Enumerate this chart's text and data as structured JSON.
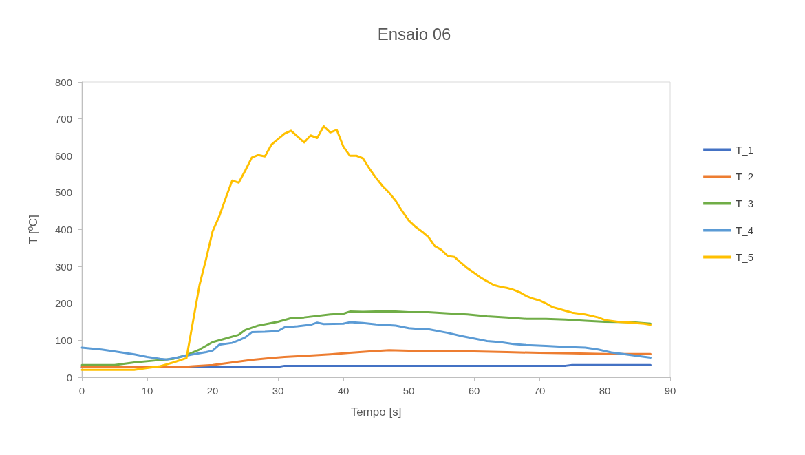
{
  "chart_data": {
    "type": "line",
    "title": "Ensaio 06",
    "xlabel": "Tempo [s]",
    "ylabel": "T [ºC]",
    "xlim": [
      0,
      90
    ],
    "xticks": [
      0,
      10,
      20,
      30,
      40,
      50,
      60,
      70,
      80,
      90
    ],
    "ylim": [
      0,
      800
    ],
    "yticks": [
      0,
      100,
      200,
      300,
      400,
      500,
      600,
      700,
      800
    ],
    "grid": false,
    "legend": "right",
    "marker": "none",
    "line_style": "solid",
    "series": [
      {
        "name": "T_1",
        "color": "#4472c4",
        "x": [
          0,
          10,
          20,
          30,
          31,
          40,
          50,
          60,
          70,
          74,
          75,
          80,
          87
        ],
        "values": [
          28,
          28,
          28,
          28,
          31,
          31,
          31,
          31,
          31,
          31,
          33,
          33,
          33
        ]
      },
      {
        "name": "T_2",
        "color": "#ed7d31",
        "x": [
          0,
          15,
          17,
          20,
          23,
          26,
          29,
          31,
          34,
          38,
          41,
          44,
          47,
          50,
          55,
          60,
          65,
          70,
          75,
          80,
          87
        ],
        "values": [
          27,
          27,
          30,
          33,
          40,
          47,
          52,
          55,
          58,
          62,
          66,
          70,
          73,
          72,
          72,
          70,
          68,
          66,
          65,
          63,
          63
        ]
      },
      {
        "name": "T_3",
        "color": "#70ad47",
        "x": [
          0,
          5,
          8,
          11,
          14,
          16,
          18,
          20,
          22,
          24,
          25,
          27,
          30,
          32,
          34,
          38,
          40,
          41,
          43,
          45,
          48,
          50,
          53,
          56,
          59,
          62,
          65,
          68,
          71,
          74,
          77,
          80,
          84,
          87
        ],
        "values": [
          33,
          33,
          40,
          45,
          50,
          60,
          75,
          95,
          105,
          115,
          128,
          140,
          150,
          160,
          162,
          170,
          172,
          178,
          177,
          178,
          178,
          176,
          176,
          173,
          170,
          165,
          162,
          158,
          158,
          156,
          153,
          150,
          149,
          145
        ]
      },
      {
        "name": "T_4",
        "color": "#5b9bd5",
        "x": [
          0,
          3,
          5,
          8,
          10,
          12,
          13,
          15,
          17,
          19,
          20,
          21,
          23,
          24,
          25,
          26,
          28,
          30,
          31,
          33,
          35,
          36,
          37,
          40,
          41,
          43,
          45,
          48,
          50,
          52,
          53,
          56,
          58,
          60,
          62,
          64,
          66,
          68,
          71,
          74,
          77,
          79,
          81,
          84,
          87
        ],
        "values": [
          80,
          75,
          70,
          62,
          55,
          50,
          48,
          55,
          62,
          68,
          72,
          88,
          93,
          100,
          108,
          122,
          123,
          125,
          135,
          138,
          142,
          148,
          144,
          145,
          149,
          147,
          143,
          140,
          133,
          130,
          130,
          120,
          112,
          105,
          98,
          95,
          90,
          87,
          85,
          82,
          80,
          75,
          67,
          60,
          53
        ]
      },
      {
        "name": "T_5",
        "color": "#ffc000",
        "x": [
          0,
          8,
          10,
          12,
          14,
          16,
          18,
          19,
          20,
          21,
          22,
          23,
          24,
          25,
          26,
          27,
          28,
          29,
          30,
          31,
          32,
          33,
          34,
          35,
          36,
          37,
          38,
          39,
          40,
          41,
          42,
          43,
          44,
          45,
          46,
          47,
          48,
          49,
          50,
          51,
          52,
          53,
          54,
          55,
          56,
          57,
          58,
          59,
          60,
          61,
          62,
          63,
          64,
          65,
          66,
          67,
          68,
          69,
          70,
          71,
          72,
          73,
          74,
          75,
          77,
          79,
          80,
          82,
          84,
          86,
          87
        ],
        "values": [
          20,
          20,
          25,
          30,
          40,
          52,
          250,
          320,
          395,
          435,
          485,
          533,
          527,
          560,
          595,
          602,
          598,
          630,
          645,
          660,
          668,
          652,
          636,
          655,
          648,
          680,
          663,
          670,
          625,
          600,
          600,
          593,
          565,
          540,
          518,
          500,
          478,
          450,
          425,
          408,
          395,
          380,
          355,
          345,
          328,
          326,
          310,
          295,
          283,
          270,
          260,
          250,
          245,
          242,
          237,
          230,
          220,
          213,
          208,
          200,
          190,
          185,
          180,
          175,
          170,
          162,
          155,
          150,
          148,
          145,
          142
        ]
      }
    ]
  }
}
